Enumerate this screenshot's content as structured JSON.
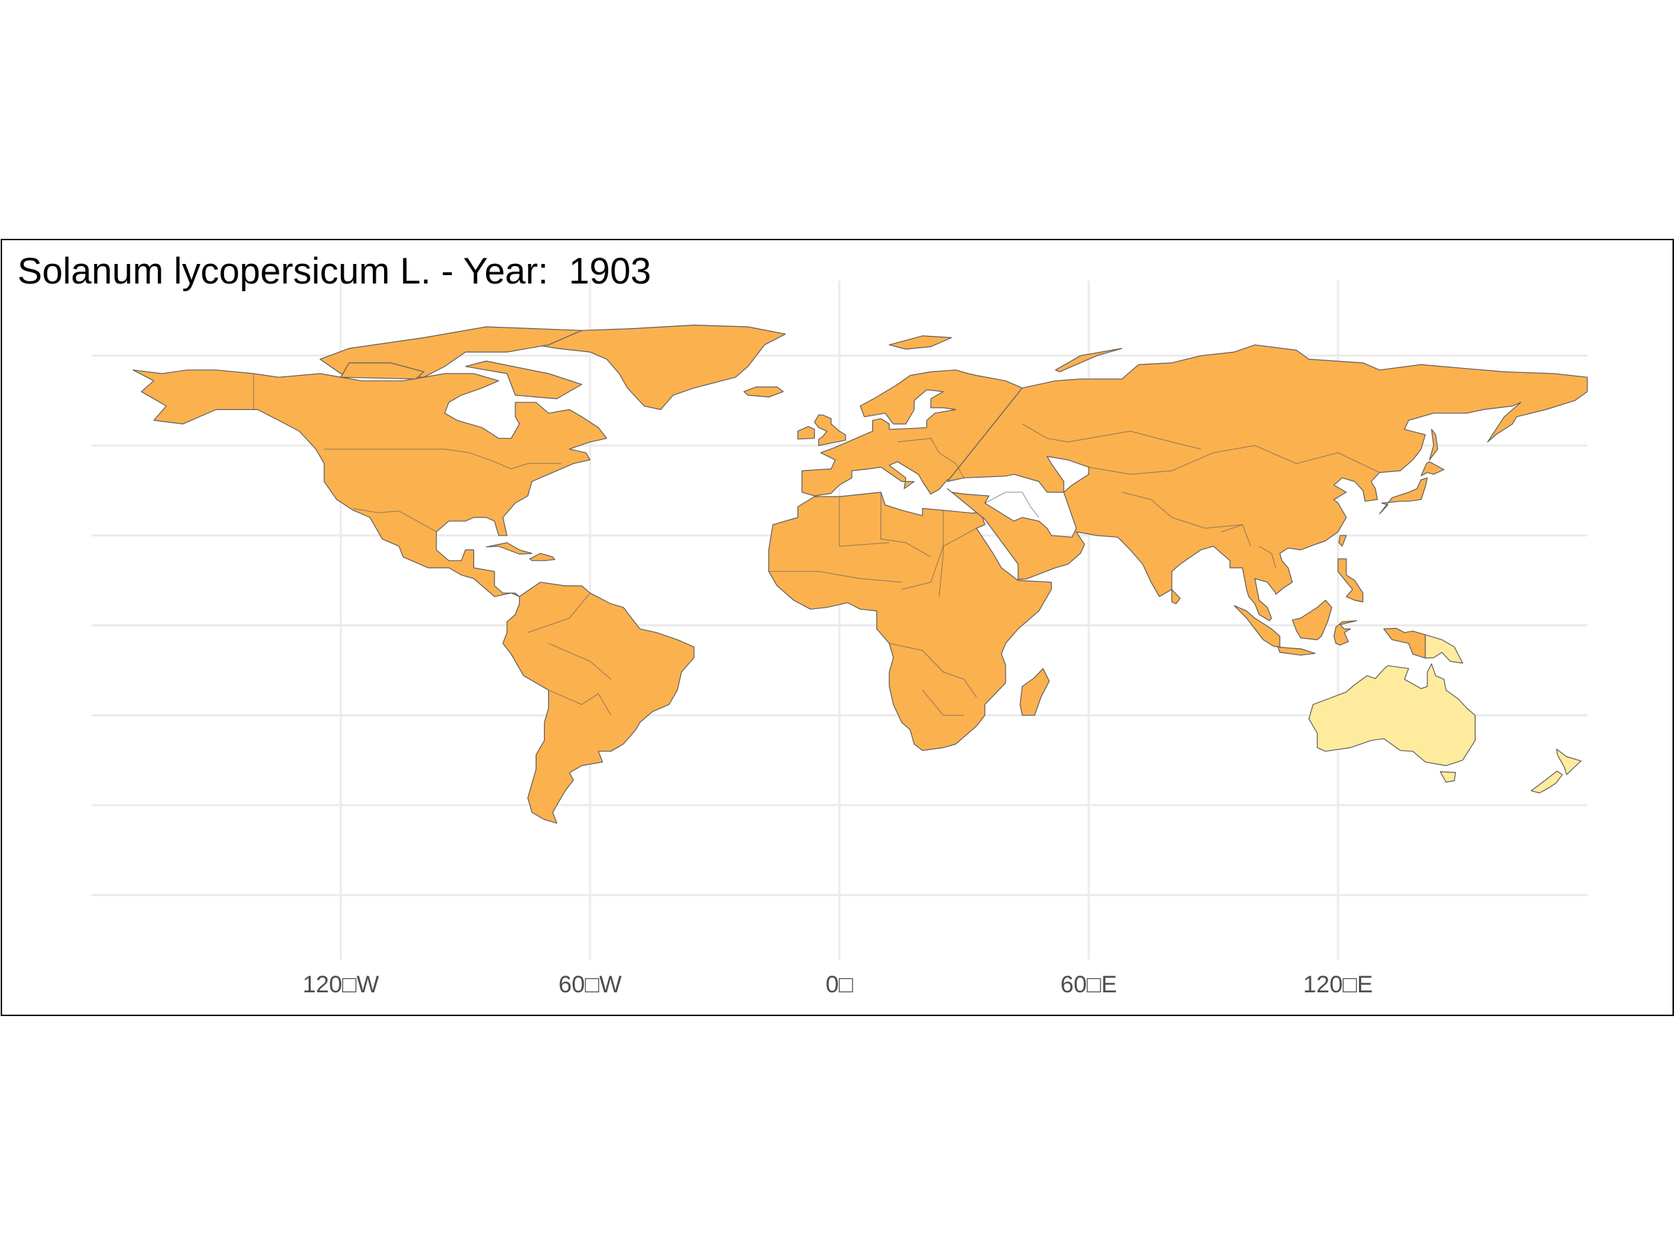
{
  "title": "Solanum lycopersicum L. - Year:  1903",
  "map": {
    "projection": "equirectangular",
    "lon_range": [
      -180,
      180
    ],
    "lat_range": [
      -90,
      90
    ],
    "graticule_lines": "on",
    "lon_tick_labels": [
      {
        "lon": -120,
        "text": "120□W"
      },
      {
        "lon": -60,
        "text": "60□W"
      },
      {
        "lon": 0,
        "text": "0□"
      },
      {
        "lon": 60,
        "text": "60□E"
      },
      {
        "lon": 120,
        "text": "120□E"
      }
    ],
    "colors": {
      "present": "#fcb14f",
      "highlighted": "#feeb9e",
      "border": "#5b5b5b",
      "grid": "#ebebeb"
    },
    "regions": [
      {
        "name": "North America",
        "status": "present"
      },
      {
        "name": "Greenland",
        "status": "present"
      },
      {
        "name": "South America",
        "status": "present"
      },
      {
        "name": "Europe",
        "status": "present"
      },
      {
        "name": "Africa",
        "status": "present"
      },
      {
        "name": "Madagascar",
        "status": "present"
      },
      {
        "name": "Asia",
        "status": "present"
      },
      {
        "name": "Japan",
        "status": "present"
      },
      {
        "name": "Southeast Asia",
        "status": "present"
      },
      {
        "name": "Indonesia",
        "status": "present"
      },
      {
        "name": "Papua New Guinea",
        "status": "highlighted"
      },
      {
        "name": "Australia",
        "status": "highlighted"
      },
      {
        "name": "New Zealand",
        "status": "highlighted"
      }
    ]
  }
}
